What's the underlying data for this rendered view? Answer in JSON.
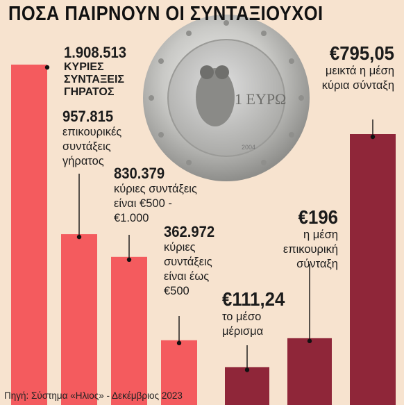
{
  "title": "ΠΟΣΑ ΠΑΙΡΝΟΥΝ ΟΙ ΣΥΝΤΑΞΙΟΥΧΟΙ",
  "source": "Πηγή: Σύστημα «Ηλιος» - Δεκέμβριος 2023",
  "colors": {
    "group_counts": "#f45b5e",
    "group_amounts": "#8f2639",
    "background": "#f7e3cf"
  },
  "coin": {
    "icon": "euro-1-coin-icon",
    "text": "1 ΕΥΡΩ",
    "year": "2004"
  },
  "chart_data": {
    "type": "bar",
    "groups": [
      {
        "name": "counts",
        "color": "#f45b5e",
        "bars": [
          {
            "value": 1908513,
            "label": "1.908.513",
            "desc_lines": [
              "ΚΥΡΙΕΣ",
              "ΣΥΝΤΑΞΕΙΣ",
              "ΓΗΡΑΤΟΣ"
            ]
          },
          {
            "value": 957815,
            "label": "957.815",
            "desc_lines": [
              "επικουρικές",
              "συντάξεις",
              "γήρατος"
            ]
          },
          {
            "value": 830379,
            "label": "830.379",
            "desc_lines": [
              "κύριες συντάξεις",
              "είναι €500 -",
              "€1.000"
            ]
          },
          {
            "value": 362972,
            "label": "362.972",
            "desc_lines": [
              "κύριες",
              "συντάξεις",
              "είναι έως",
              "€500"
            ]
          }
        ]
      },
      {
        "name": "amounts",
        "color": "#8f2639",
        "bars": [
          {
            "value": 111.24,
            "label": "€111,24",
            "desc_lines": [
              "το μέσο",
              "μέρισμα"
            ]
          },
          {
            "value": 196,
            "label": "€196",
            "desc_lines": [
              "η μέση",
              "επικουρική",
              "σύνταξη"
            ]
          },
          {
            "value": 795.05,
            "label": "€795,05",
            "desc_lines": [
              "μεικτά η μέση",
              "κύρια σύνταξη"
            ]
          }
        ]
      }
    ]
  }
}
